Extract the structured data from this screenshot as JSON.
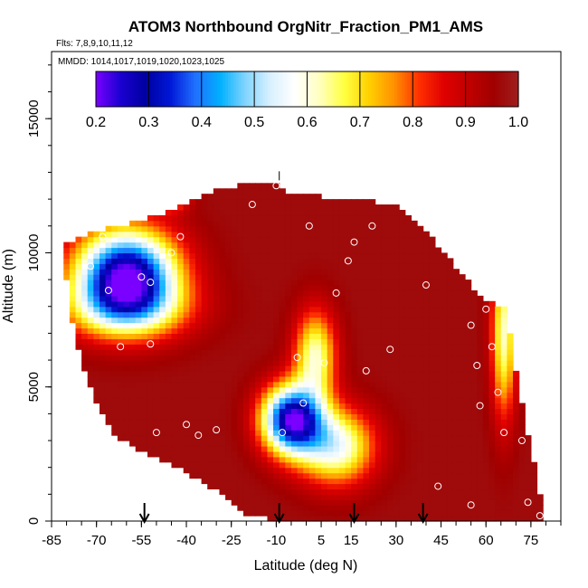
{
  "chart_data": {
    "type": "heatmap",
    "title": "ATOM3 Northbound OrgNitr_Fraction_PM1_AMS",
    "flights_label": "Flts: 7,8,9,10,11,12",
    "dates_label": "MMDD: 1014,1017,1019,1020,1023,1025",
    "xlabel": "Latitude (deg N)",
    "ylabel": "Altitude (m)",
    "xlim": [
      -85,
      85
    ],
    "ylim": [
      0,
      17500
    ],
    "x_ticks": [
      -85,
      -70,
      -55,
      -40,
      -25,
      -10,
      5,
      15,
      30,
      45,
      60,
      75
    ],
    "x_tick_labels": [
      "-85",
      "-70",
      "-55",
      "-40",
      "-25",
      "-10",
      "5",
      "15",
      "30",
      "45",
      "60",
      "75"
    ],
    "y_ticks": [
      0,
      5000,
      10000,
      15000
    ],
    "y_tick_labels": [
      "0",
      "5000",
      "10000",
      "15000"
    ],
    "colorbar": {
      "min": 0.2,
      "max": 1.0,
      "ticks": [
        0.2,
        0.3,
        0.4,
        0.5,
        0.6,
        0.7,
        0.8,
        0.9,
        1.0
      ],
      "tick_labels": [
        "0.2",
        "0.3",
        "0.4",
        "0.5",
        "0.6",
        "0.7",
        "0.8",
        "0.9",
        "1.0"
      ],
      "colors": [
        "#7a00ff",
        "#1a00d0",
        "#0000a0",
        "#0018d8",
        "#2070ff",
        "#00b0ff",
        "#80d4ff",
        "#d8f0ff",
        "#ffffff",
        "#ffffc0",
        "#ffff40",
        "#ffd000",
        "#ff9000",
        "#ff3000",
        "#e00000",
        "#c00000",
        "#a00000",
        "#9e1f1f"
      ]
    },
    "arrows_latitude": [
      -54,
      -9,
      16,
      39
    ],
    "field": {
      "background_value": 0.97,
      "top_tick_latitude": -9,
      "domain": [
        [
          -80,
          9000
        ],
        [
          -80,
          10400
        ],
        [
          -70,
          10800
        ],
        [
          -55,
          11200
        ],
        [
          -40,
          11800
        ],
        [
          -30,
          12300
        ],
        [
          -20,
          12600
        ],
        [
          -10,
          12700
        ],
        [
          -5,
          12200
        ],
        [
          15,
          12000
        ],
        [
          30,
          11800
        ],
        [
          40,
          10800
        ],
        [
          50,
          9500
        ],
        [
          58,
          8400
        ],
        [
          66,
          8000
        ],
        [
          68,
          7000
        ],
        [
          70,
          5600
        ],
        [
          72,
          4500
        ],
        [
          74,
          3200
        ],
        [
          76,
          2200
        ],
        [
          78,
          1000
        ],
        [
          80,
          0
        ],
        [
          -10,
          0
        ],
        [
          -20,
          300
        ],
        [
          -25,
          800
        ],
        [
          -35,
          1500
        ],
        [
          -45,
          2100
        ],
        [
          -55,
          2600
        ],
        [
          -65,
          3300
        ],
        [
          -70,
          4500
        ],
        [
          -75,
          6000
        ],
        [
          -78,
          7500
        ]
      ],
      "features": [
        {
          "lat": -60,
          "alt": 9200,
          "sx": 12,
          "sy": 1200,
          "amp": 0.75
        },
        {
          "lat": -60,
          "alt": 7900,
          "sx": 15,
          "sy": 800,
          "amp": 0.25
        },
        {
          "lat": -45,
          "alt": 12200,
          "sx": 4,
          "sy": 400,
          "amp": 0.3
        },
        {
          "lat": -5,
          "alt": 3800,
          "sx": 7,
          "sy": 900,
          "amp": 0.72
        },
        {
          "lat": 3,
          "alt": 6200,
          "sx": 5,
          "sy": 1200,
          "amp": 0.35
        },
        {
          "lat": 10,
          "alt": 2800,
          "sx": 9,
          "sy": 1000,
          "amp": 0.4
        },
        {
          "lat": 66,
          "alt": 7000,
          "sx": 3,
          "sy": 2200,
          "amp": 0.35
        }
      ],
      "sample_points": [
        [
          -72,
          9500
        ],
        [
          -68,
          10600
        ],
        [
          -66,
          8600
        ],
        [
          -62,
          6500
        ],
        [
          -52,
          8900
        ],
        [
          -50,
          3300
        ],
        [
          -45,
          10000
        ],
        [
          -42,
          10600
        ],
        [
          -40,
          3600
        ],
        [
          -36,
          3200
        ],
        [
          -30,
          3400
        ],
        [
          -18,
          11800
        ],
        [
          -10,
          12500
        ],
        [
          -8,
          3300
        ],
        [
          -3,
          6100
        ],
        [
          -1,
          4400
        ],
        [
          1,
          11000
        ],
        [
          6,
          5900
        ],
        [
          10,
          8500
        ],
        [
          14,
          9700
        ],
        [
          16,
          10400
        ],
        [
          20,
          5600
        ],
        [
          22,
          11000
        ],
        [
          28,
          6400
        ],
        [
          36,
          11500
        ],
        [
          40,
          8800
        ],
        [
          44,
          1300
        ],
        [
          55,
          7300
        ],
        [
          57,
          5800
        ],
        [
          58,
          4300
        ],
        [
          60,
          7900
        ],
        [
          62,
          6500
        ],
        [
          64,
          4800
        ],
        [
          66,
          3300
        ],
        [
          72,
          3000
        ],
        [
          74,
          700
        ],
        [
          78,
          200
        ],
        [
          55,
          600
        ],
        [
          -55,
          9100
        ],
        [
          -52,
          6600
        ]
      ]
    }
  }
}
